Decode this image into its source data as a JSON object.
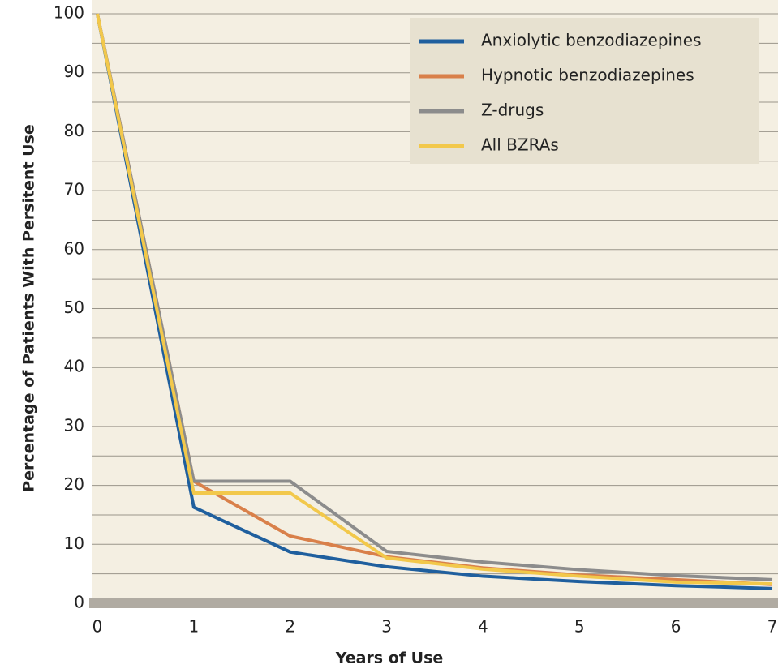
{
  "chart_data": {
    "type": "line",
    "x_label": "Years of Use",
    "y_label": "Percentage of Patients With Persitent Use",
    "x": [
      0,
      1,
      2,
      3,
      4,
      5,
      6,
      7
    ],
    "series": [
      {
        "name": "Anxiolytic benzodiazepines",
        "color": "#1f5f9e",
        "values": [
          100,
          16.3,
          8.7,
          6.2,
          4.6,
          3.7,
          3.0,
          2.5
        ]
      },
      {
        "name": "Hypnotic benzodiazepines",
        "color": "#d9804a",
        "values": [
          100,
          20.7,
          11.4,
          7.9,
          6.0,
          4.8,
          4.0,
          3.2
        ]
      },
      {
        "name": "Z-drugs",
        "color": "#8c8c8c",
        "values": [
          100,
          20.7,
          20.7,
          8.8,
          7.0,
          5.7,
          4.7,
          4.0
        ]
      },
      {
        "name": "All BZRAs",
        "color": "#f2c84b",
        "values": [
          100,
          18.7,
          18.7,
          7.7,
          5.8,
          4.6,
          3.6,
          3.3
        ]
      }
    ],
    "xlim": [
      0,
      7
    ],
    "xticks": [
      0,
      1,
      2,
      3,
      4,
      5,
      6,
      7
    ],
    "ylim": [
      0,
      100
    ],
    "yticks": [
      0,
      10,
      20,
      30,
      40,
      50,
      60,
      70,
      80,
      90,
      100
    ],
    "minor_grid": [
      5,
      15,
      25,
      35,
      45,
      55,
      65,
      75,
      85,
      95
    ],
    "grid": true,
    "legend": "upper right"
  }
}
